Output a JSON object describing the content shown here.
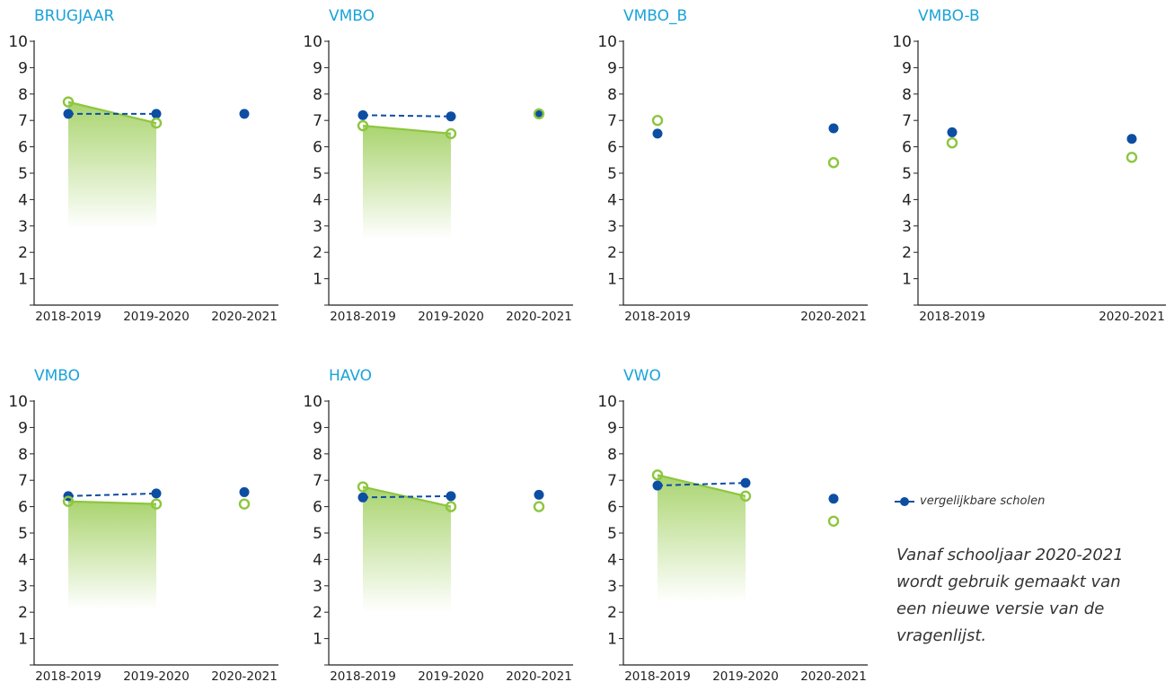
{
  "colors": {
    "title": "#1aa3d9",
    "school": "#8dc63f",
    "comparison": "#0d4ea3",
    "axis": "#222222"
  },
  "legend": {
    "comparison_label": "vergelijkbare scholen"
  },
  "note": [
    "Vanaf schooljaar 2020-2021",
    "wordt gebruik gemaakt van",
    "een nieuwe versie van de",
    "vragenlijst."
  ],
  "chart_data": [
    {
      "type": "line",
      "title": "BRUGJAAR",
      "x": [
        "2018-2019",
        "2019-2020",
        "2020-2021"
      ],
      "ylim": [
        0,
        10
      ],
      "yticks": [
        "10",
        "9",
        "8",
        "7",
        "6",
        "5",
        "4",
        "3",
        "2",
        "1"
      ],
      "series": [
        {
          "marker": "open-circle",
          "values": [
            7.7,
            6.9,
            null
          ],
          "connected": [
            0,
            1
          ]
        },
        {
          "name": "vergelijkbare scholen",
          "marker": "filled-circle",
          "values": [
            7.25,
            7.25,
            7.25
          ],
          "connected": [
            0,
            1
          ]
        }
      ]
    },
    {
      "type": "line",
      "title": "VMBO",
      "x": [
        "2018-2019",
        "2019-2020",
        "2020-2021"
      ],
      "ylim": [
        0,
        10
      ],
      "yticks": [
        "10",
        "9",
        "8",
        "7",
        "6",
        "5",
        "4",
        "3",
        "2",
        "1"
      ],
      "series": [
        {
          "marker": "open-circle",
          "values": [
            6.8,
            6.5,
            7.25
          ],
          "connected": [
            0,
            1
          ]
        },
        {
          "name": "vergelijkbare scholen",
          "marker": "filled-circle",
          "values": [
            7.2,
            7.15,
            7.25
          ],
          "connected": [
            0,
            1
          ]
        }
      ]
    },
    {
      "type": "scatter",
      "title": "VMBO_B",
      "x": [
        "2018-2019",
        "2020-2021"
      ],
      "ylim": [
        0,
        10
      ],
      "yticks": [
        "10",
        "9",
        "8",
        "7",
        "6",
        "5",
        "4",
        "3",
        "2",
        "1"
      ],
      "series": [
        {
          "marker": "open-circle",
          "values": [
            7.0,
            5.4
          ],
          "connected": []
        },
        {
          "name": "vergelijkbare scholen",
          "marker": "filled-circle",
          "values": [
            6.5,
            6.7
          ],
          "connected": []
        }
      ]
    },
    {
      "type": "scatter",
      "title": "VMBO-B",
      "x": [
        "2018-2019",
        "2020-2021"
      ],
      "ylim": [
        0,
        10
      ],
      "yticks": [
        "10",
        "9",
        "8",
        "7",
        "6",
        "5",
        "4",
        "3",
        "2",
        "1"
      ],
      "series": [
        {
          "marker": "open-circle",
          "values": [
            6.15,
            5.6
          ],
          "connected": []
        },
        {
          "name": "vergelijkbare scholen",
          "marker": "filled-circle",
          "values": [
            6.55,
            6.3
          ],
          "connected": []
        }
      ]
    },
    {
      "type": "line",
      "title": "VMBO",
      "x": [
        "2018-2019",
        "2019-2020",
        "2020-2021"
      ],
      "ylim": [
        0,
        10
      ],
      "yticks": [
        "10",
        "9",
        "8",
        "7",
        "6",
        "5",
        "4",
        "3",
        "2",
        "1"
      ],
      "series": [
        {
          "marker": "open-circle",
          "values": [
            6.2,
            6.1,
            6.1
          ],
          "connected": [
            0,
            1
          ]
        },
        {
          "name": "vergelijkbare scholen",
          "marker": "filled-circle",
          "values": [
            6.4,
            6.5,
            6.55
          ],
          "connected": [
            0,
            1
          ]
        }
      ]
    },
    {
      "type": "line",
      "title": "HAVO",
      "x": [
        "2018-2019",
        "2019-2020",
        "2020-2021"
      ],
      "ylim": [
        0,
        10
      ],
      "yticks": [
        "10",
        "9",
        "8",
        "7",
        "6",
        "5",
        "4",
        "3",
        "2",
        "1"
      ],
      "series": [
        {
          "marker": "open-circle",
          "values": [
            6.75,
            6.0,
            6.0
          ],
          "connected": [
            0,
            1
          ]
        },
        {
          "name": "vergelijkbare scholen",
          "marker": "filled-circle",
          "values": [
            6.35,
            6.4,
            6.45
          ],
          "connected": [
            0,
            1
          ]
        }
      ]
    },
    {
      "type": "line",
      "title": "VWO",
      "x": [
        "2018-2019",
        "2019-2020",
        "2020-2021"
      ],
      "ylim": [
        0,
        10
      ],
      "yticks": [
        "10",
        "9",
        "8",
        "7",
        "6",
        "5",
        "4",
        "3",
        "2",
        "1"
      ],
      "series": [
        {
          "marker": "open-circle",
          "values": [
            7.2,
            6.4,
            5.45
          ],
          "connected": [
            0,
            1
          ]
        },
        {
          "name": "vergelijkbare scholen",
          "marker": "filled-circle",
          "values": [
            6.8,
            6.9,
            6.3
          ],
          "connected": [
            0,
            1
          ]
        }
      ]
    }
  ]
}
